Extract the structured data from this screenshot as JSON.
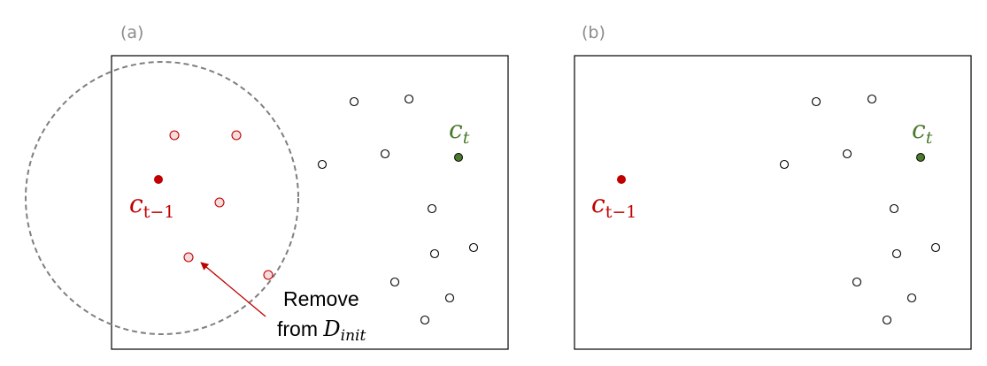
{
  "panels": [
    {
      "label": "(a)",
      "previous_center_label": {
        "base": "c",
        "subscript": "t−1"
      },
      "current_center_label": {
        "base": "c",
        "subscript": "t"
      },
      "annotation": {
        "line1": "Remove",
        "line2_prefix": "from ",
        "symbol": "D",
        "subscript": "init"
      }
    },
    {
      "label": "(b)",
      "previous_center_label": {
        "base": "c",
        "subscript": "t−1"
      },
      "current_center_label": {
        "base": "c",
        "subscript": "t"
      }
    }
  ],
  "colors": {
    "previous_center": "#c00000",
    "current_center": "#4a7a2c",
    "removed_point_fill": "#f6dcdc",
    "radius_circle": "#7f7f7f",
    "panel_label": "#8c8c8c"
  }
}
